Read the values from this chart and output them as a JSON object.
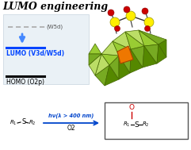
{
  "title": "LUMO engineering",
  "bg_color": "#ffffff",
  "lumo_label": "LUMO (V3d/W5d)",
  "homo_label": "HOMO (O2p)",
  "w5d_label": "(W5d)",
  "reaction_arrow_text": "hν(λ > 400 nm)",
  "reaction_o2": "O2",
  "lumo_color": "#0044ff",
  "homo_color": "#000000",
  "arrow_color": "#4488ff",
  "dashed_color": "#aaaaaa",
  "reaction_arrow_color": "#0044cc",
  "pom_green_light": "#99cc33",
  "pom_green_mid": "#77aa22",
  "pom_green_dark": "#558800",
  "pom_green_pale": "#bbdd66",
  "pom_orange": "#ee7700",
  "pom_yellow": "#ffee00",
  "pom_red": "#cc0000",
  "bond_color": "#333333"
}
